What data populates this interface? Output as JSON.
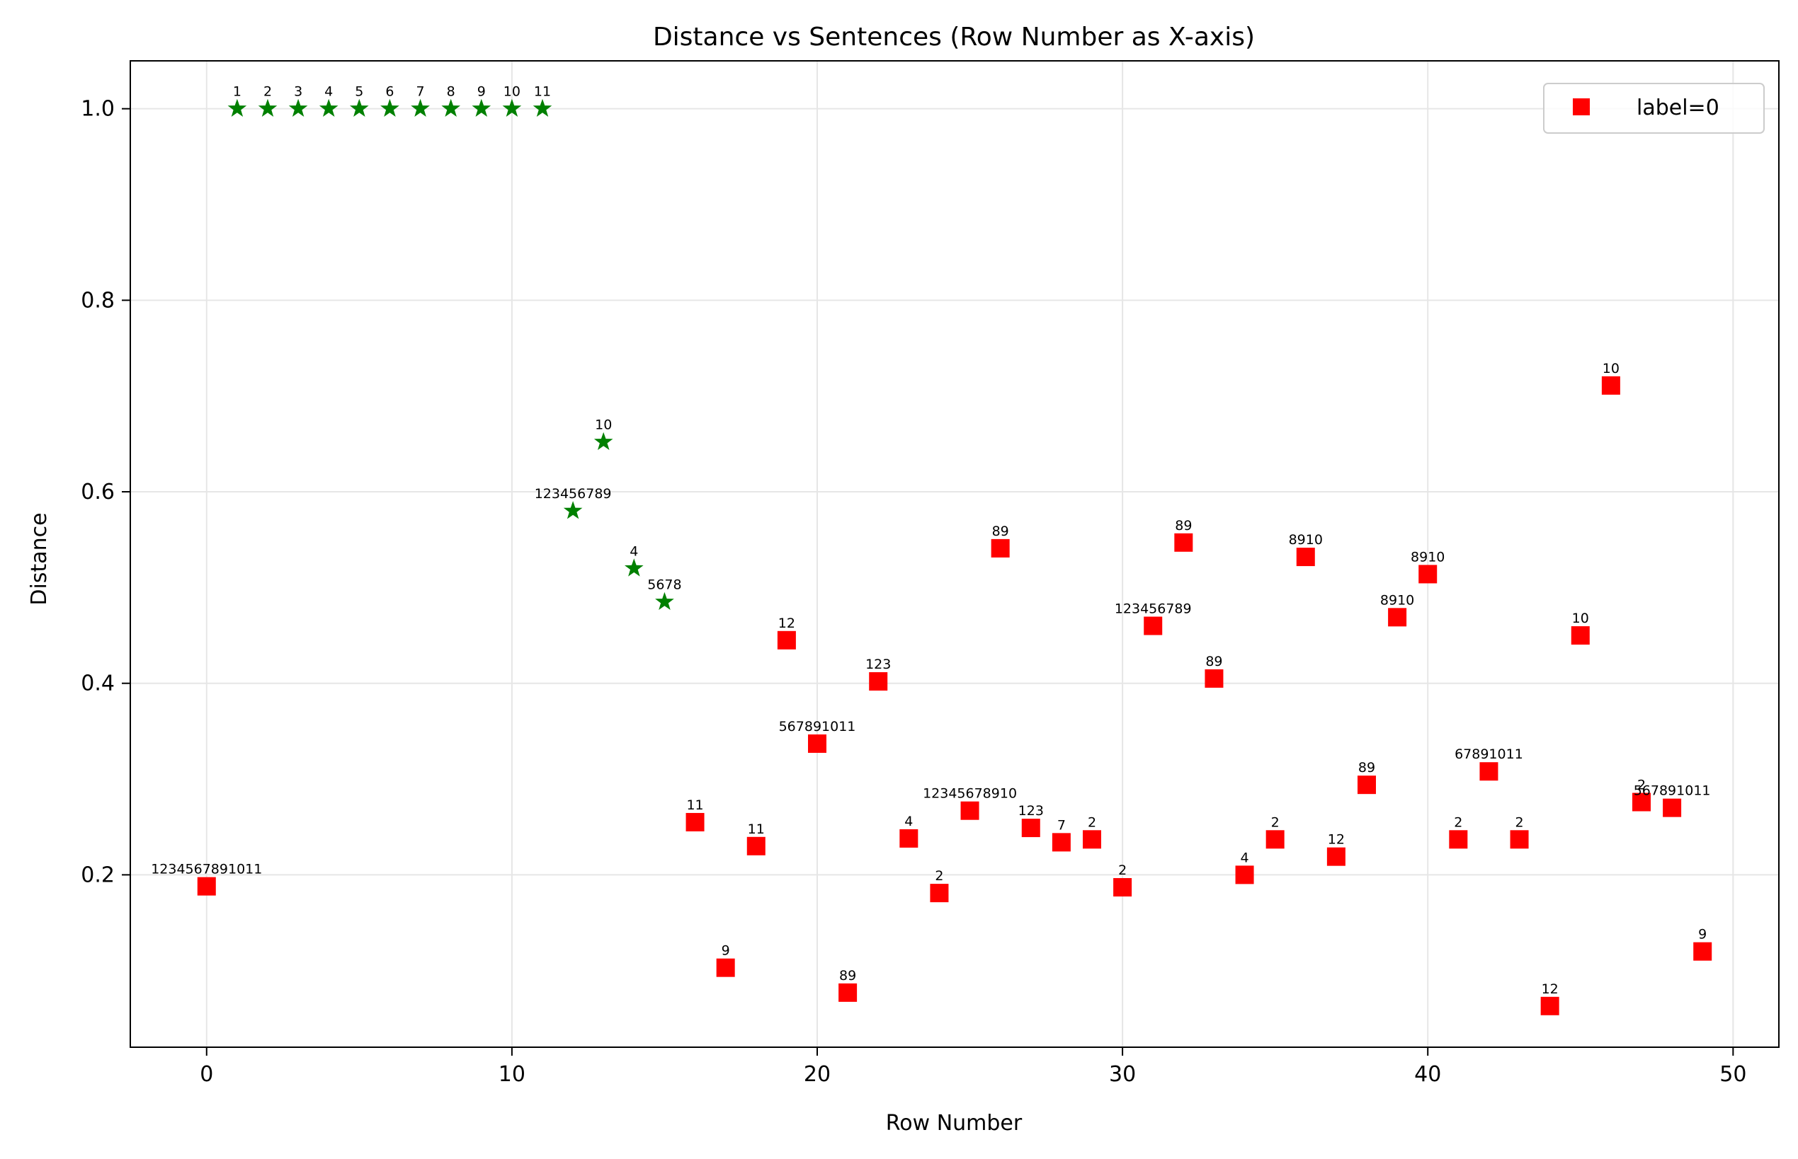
{
  "chart_data": {
    "type": "scatter",
    "title": "Distance vs Sentences (Row Number as X-axis)",
    "xlabel": "Row Number",
    "ylabel": "Distance",
    "xlim": [
      -2.5,
      51.5
    ],
    "ylim": [
      0.02,
      1.05
    ],
    "xticks": [
      0,
      10,
      20,
      30,
      40,
      50
    ],
    "yticks": [
      0.2,
      0.4,
      0.6,
      0.8,
      1.0
    ],
    "ytick_labels": [
      "0.2",
      "0.4",
      "0.6",
      "0.8",
      "1.0"
    ],
    "grid": true,
    "legend_position": "top-right",
    "series": [
      {
        "name": "",
        "marker": "star",
        "color": "#008000",
        "points": [
          {
            "x": 1,
            "y": 1.0,
            "label": "1"
          },
          {
            "x": 2,
            "y": 1.0,
            "label": "2"
          },
          {
            "x": 3,
            "y": 1.0,
            "label": "3"
          },
          {
            "x": 4,
            "y": 1.0,
            "label": "4"
          },
          {
            "x": 5,
            "y": 1.0,
            "label": "5"
          },
          {
            "x": 6,
            "y": 1.0,
            "label": "6"
          },
          {
            "x": 7,
            "y": 1.0,
            "label": "7"
          },
          {
            "x": 8,
            "y": 1.0,
            "label": "8"
          },
          {
            "x": 9,
            "y": 1.0,
            "label": "9"
          },
          {
            "x": 10,
            "y": 1.0,
            "label": "10"
          },
          {
            "x": 11,
            "y": 1.0,
            "label": "11"
          },
          {
            "x": 12,
            "y": 0.58,
            "label": "123456789"
          },
          {
            "x": 13,
            "y": 0.652,
            "label": "10"
          },
          {
            "x": 14,
            "y": 0.52,
            "label": "4"
          },
          {
            "x": 15,
            "y": 0.485,
            "label": "5678"
          }
        ]
      },
      {
        "name": "label=0",
        "marker": "square",
        "color": "#ff0000",
        "points": [
          {
            "x": 0,
            "y": 0.188,
            "label": "1234567891011"
          },
          {
            "x": 16,
            "y": 0.255,
            "label": "11"
          },
          {
            "x": 17,
            "y": 0.103,
            "label": "9"
          },
          {
            "x": 18,
            "y": 0.23,
            "label": "11"
          },
          {
            "x": 19,
            "y": 0.445,
            "label": "12"
          },
          {
            "x": 20,
            "y": 0.337,
            "label": "567891011"
          },
          {
            "x": 21,
            "y": 0.077,
            "label": "89"
          },
          {
            "x": 22,
            "y": 0.402,
            "label": "123"
          },
          {
            "x": 23,
            "y": 0.238,
            "label": "4"
          },
          {
            "x": 24,
            "y": 0.181,
            "label": "2"
          },
          {
            "x": 25,
            "y": 0.267,
            "label": "12345678910"
          },
          {
            "x": 26,
            "y": 0.541,
            "label": "89"
          },
          {
            "x": 27,
            "y": 0.249,
            "label": "123"
          },
          {
            "x": 28,
            "y": 0.234,
            "label": "7"
          },
          {
            "x": 29,
            "y": 0.237,
            "label": "2"
          },
          {
            "x": 30,
            "y": 0.187,
            "label": "2"
          },
          {
            "x": 31,
            "y": 0.46,
            "label": "123456789"
          },
          {
            "x": 32,
            "y": 0.547,
            "label": "89"
          },
          {
            "x": 33,
            "y": 0.405,
            "label": "89"
          },
          {
            "x": 34,
            "y": 0.2,
            "label": "4"
          },
          {
            "x": 35,
            "y": 0.237,
            "label": "2"
          },
          {
            "x": 36,
            "y": 0.532,
            "label": "8910"
          },
          {
            "x": 37,
            "y": 0.219,
            "label": "12"
          },
          {
            "x": 38,
            "y": 0.294,
            "label": "89"
          },
          {
            "x": 39,
            "y": 0.469,
            "label": "8910"
          },
          {
            "x": 40,
            "y": 0.514,
            "label": "8910"
          },
          {
            "x": 41,
            "y": 0.237,
            "label": "2"
          },
          {
            "x": 42,
            "y": 0.308,
            "label": "67891011"
          },
          {
            "x": 43,
            "y": 0.237,
            "label": "2"
          },
          {
            "x": 44,
            "y": 0.063,
            "label": "12"
          },
          {
            "x": 45,
            "y": 0.45,
            "label": "10"
          },
          {
            "x": 46,
            "y": 0.711,
            "label": "10"
          },
          {
            "x": 47,
            "y": 0.276,
            "label": "2"
          },
          {
            "x": 48,
            "y": 0.27,
            "label": "567891011"
          },
          {
            "x": 49,
            "y": 0.12,
            "label": "9"
          }
        ]
      }
    ]
  }
}
